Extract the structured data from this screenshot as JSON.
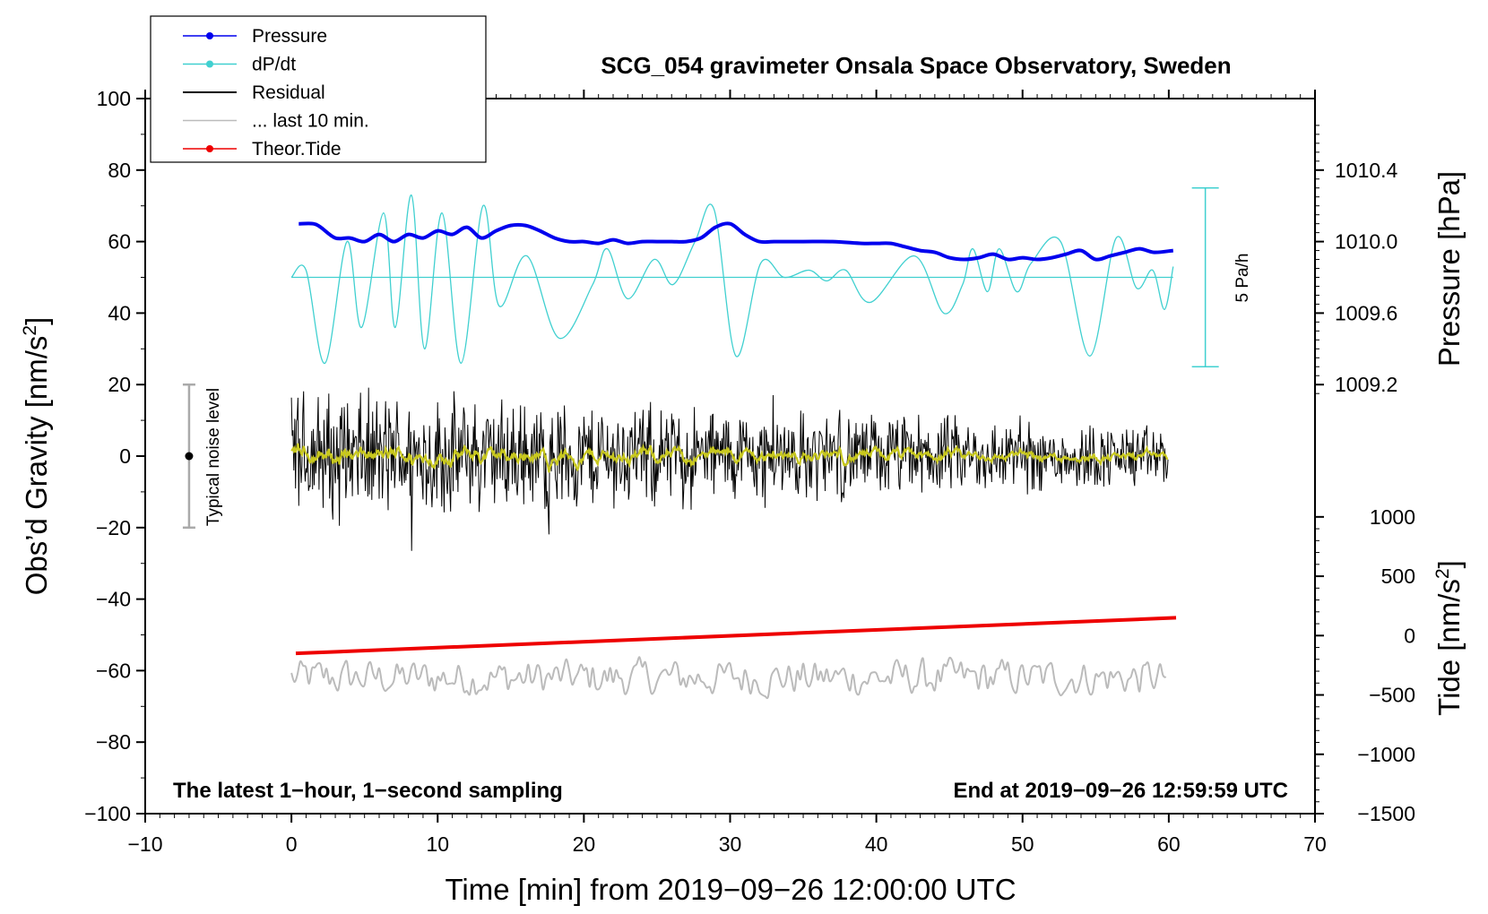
{
  "chart_data": {
    "type": "line",
    "title": "SCG_054 gravimeter Onsala Space Observatory, Sweden",
    "xlabel": "Time [min] from 2019−09−26 12:00:00 UTC",
    "ylabel_left": "Obs’d Gravity [nm/s",
    "ylabel_left_sup": "2",
    "ylabel_left_end": "]",
    "ylabel_right_pressure": "Pressure [hPa]",
    "ylabel_right_tide": "Tide [nm/s",
    "ylabel_right_tide_sup": "2",
    "ylabel_right_tide_end": "]",
    "xlim": [
      -10,
      70
    ],
    "ylim_left": [
      -100,
      100
    ],
    "x_ticks": [
      "−10",
      "0",
      "10",
      "20",
      "30",
      "40",
      "50",
      "60",
      "70"
    ],
    "x_tick_values": [
      -10,
      0,
      10,
      20,
      30,
      40,
      50,
      60,
      70
    ],
    "y_left_ticks": [
      "100",
      "80",
      "60",
      "40",
      "20",
      "0",
      "−20",
      "−40",
      "−60",
      "−80",
      "−100"
    ],
    "y_left_tick_values": [
      100,
      80,
      60,
      40,
      20,
      0,
      -20,
      -40,
      -60,
      -80,
      -100
    ],
    "pressure_ticks": [
      "1010.4",
      "1010.0",
      "1009.6",
      "1009.2"
    ],
    "pressure_tick_values": [
      1010.4,
      1010.0,
      1009.6,
      1009.2
    ],
    "pressure_axis_map": {
      "hpa": [
        1010.0,
        1009.6
      ],
      "gravity": [
        60,
        40
      ]
    },
    "tide_ticks": [
      "1000",
      "500",
      "0",
      "−500",
      "−1000",
      "−1500"
    ],
    "tide_tick_values": [
      1000,
      500,
      0,
      -500,
      -1000,
      -1500
    ],
    "tide_axis_map": {
      "nms2": [
        1000,
        -1500
      ],
      "gravity": [
        -17,
        -100
      ]
    },
    "legend": [
      {
        "label": "Pressure",
        "color": "#0000ee",
        "marker": true
      },
      {
        "label": "dP/dt",
        "color": "#40d0d0",
        "marker": true
      },
      {
        "label": "Residual",
        "color": "#000000",
        "marker": false
      },
      {
        "label": "... last 10 min.",
        "color": "#bbbbbb",
        "marker": false
      },
      {
        "label": "Theor.Tide",
        "color": "#ee0000",
        "marker": true
      }
    ],
    "annotations": {
      "bottom_left": "The latest 1−hour, 1−second sampling",
      "bottom_right": "End at 2019−09−26 12:59:59 UTC",
      "noise_label": "Typical noise level",
      "dpdt_scale_label": "5 Pa/h"
    },
    "noise_bar": {
      "x": -7,
      "center": 0,
      "low": -20,
      "high": 20
    },
    "dpdt_scale_bar": {
      "x": 62.5,
      "low": 25,
      "high": 75
    },
    "series": {
      "pressure": {
        "name": "Pressure",
        "color": "#0000ee",
        "x": [
          0.5,
          1.5,
          2,
          3,
          4,
          5,
          6,
          7,
          8,
          9,
          10,
          11,
          12,
          13,
          14,
          15,
          16,
          17,
          18,
          19,
          20,
          21,
          22,
          23,
          24,
          25,
          26,
          27,
          28,
          29,
          30,
          31,
          32,
          33,
          35,
          37,
          39,
          40,
          41,
          42,
          43,
          44,
          45,
          46,
          47,
          48,
          49,
          50,
          51,
          52,
          53,
          54,
          55,
          56,
          57,
          58,
          59,
          60.3
        ],
        "values": [
          65,
          65,
          64,
          61,
          61,
          60,
          62,
          60,
          62,
          61,
          63,
          62,
          64,
          61,
          63,
          64.5,
          64.5,
          63,
          61,
          60,
          60,
          59.5,
          60.5,
          59.5,
          60,
          60,
          60,
          60,
          61,
          64,
          65,
          62,
          60,
          60,
          60,
          60,
          59.5,
          59.5,
          59.5,
          58.5,
          57.5,
          57,
          55.5,
          55,
          55.5,
          56.5,
          55,
          55.5,
          55,
          55.5,
          56.5,
          57.5,
          55,
          56,
          57,
          58,
          57,
          57.5
        ]
      },
      "dpdt": {
        "name": "dP/dt",
        "color": "#40d0d0",
        "zero_level": 50,
        "x": [
          0,
          1,
          2.3,
          3.8,
          4.8,
          6.3,
          7.1,
          8.2,
          9.1,
          10.3,
          11.6,
          13.1,
          14.2,
          16.1,
          18.3,
          20.6,
          21.6,
          23,
          24.8,
          26.1,
          27.6,
          28.9,
          30.4,
          32.1,
          33.7,
          35.4,
          36.6,
          37.9,
          39.6,
          42.6,
          44.6,
          45.9,
          46.6,
          47.6,
          48.4,
          49.6,
          50.6,
          52.6,
          54.6,
          56.4,
          57.8,
          58.9,
          59.7,
          60.3
        ],
        "values": [
          50,
          52,
          26,
          60,
          36,
          68,
          36,
          73,
          30,
          68,
          26,
          70,
          42,
          56,
          33,
          48,
          58,
          44,
          55,
          48,
          60,
          69,
          28,
          54,
          50,
          52,
          49,
          52,
          43,
          56,
          40,
          48,
          58,
          46,
          58,
          46,
          54,
          60,
          28,
          61,
          47,
          52,
          41,
          53
        ]
      },
      "residual": {
        "name": "Residual",
        "color": "#000000",
        "x_range": [
          0,
          60
        ],
        "envelope_start": 22,
        "envelope_end": 10
      },
      "residual_smooth": {
        "name": "Residual (smoothed)",
        "color": "#c8c81e",
        "amplitude": 3
      },
      "last10": {
        "name": "... last 10 min.",
        "color": "#bbbbbb",
        "x_range": [
          0,
          60
        ],
        "center": -62,
        "amplitude": 6
      },
      "tide": {
        "name": "Theor.Tide",
        "color": "#ee0000",
        "x": [
          0.3,
          60.5
        ],
        "values_nms2": [
          -150,
          150
        ]
      }
    }
  }
}
